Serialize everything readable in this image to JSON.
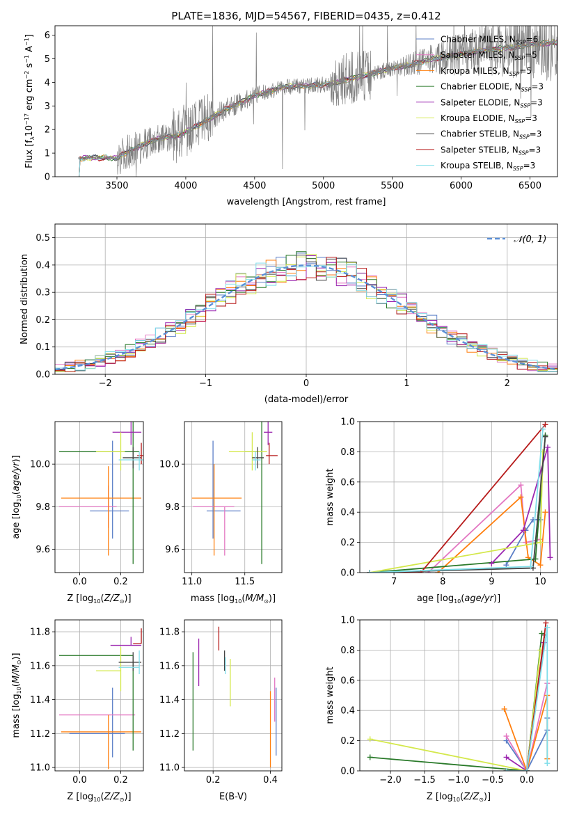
{
  "figure": {
    "title": "PLATE=1836, MJD=54567, FIBERID=0435, z=0.412"
  },
  "colors": {
    "chabrier_miles": "#5b7fc7",
    "salpeter_miles": "#e377c2",
    "kroupa_miles": "#ff7f0e",
    "chabrier_elodie": "#2a7a2a",
    "salpeter_elodie": "#9c27b0",
    "kroupa_elodie": "#d4e84c",
    "chabrier_stelib": "#444444",
    "salpeter_stelib": "#b71c1c",
    "kroupa_stelib": "#80deea",
    "gauss": "#5b8fd6",
    "data": "#808080"
  },
  "chart_data": [
    {
      "id": "spectrum",
      "type": "line",
      "title": "PLATE=1836, MJD=54567, FIBERID=0435, z=0.412",
      "xlabel": "wavelength [Angstrom, rest frame]",
      "ylabel": "Flux [fλ10⁻¹⁷ erg cm⁻² s⁻¹ A⁻¹]",
      "xlim": [
        3050,
        6700
      ],
      "ylim": [
        0,
        6.4
      ],
      "xticks": [
        3500,
        4000,
        4500,
        5000,
        5500,
        6000,
        6500
      ],
      "yticks": [
        0,
        1,
        2,
        3,
        4,
        5,
        6
      ],
      "grid": false,
      "legend": "upper-right",
      "data_x_range": [
        3220,
        6700
      ],
      "continuum": {
        "x": [
          3220,
          3280,
          3500,
          3560,
          3700,
          3800,
          3950,
          4000,
          4100,
          4200,
          4300,
          4400,
          4500,
          4600,
          4700,
          4800,
          4900,
          5000,
          5100,
          5200,
          5300,
          5400,
          5500,
          5600,
          5700,
          5800,
          5900,
          6000,
          6100,
          6200,
          6300,
          6400,
          6500,
          6600,
          6700
        ],
        "y": [
          0.75,
          0.8,
          0.8,
          1.0,
          1.4,
          1.6,
          1.75,
          1.9,
          2.2,
          2.55,
          2.9,
          3.15,
          3.45,
          3.6,
          3.8,
          3.85,
          3.85,
          3.9,
          4.0,
          4.15,
          4.3,
          4.45,
          4.6,
          4.7,
          4.85,
          5.0,
          5.1,
          5.2,
          5.3,
          5.4,
          5.45,
          5.5,
          5.6,
          5.65,
          5.7
        ]
      },
      "legend_entries": [
        {
          "key": "chabrier_miles",
          "label": "Chabrier MILES, N",
          "sub": "SSP",
          "suffix": "=6"
        },
        {
          "key": "salpeter_miles",
          "label": "Salpeter MILES, N",
          "sub": "SSP",
          "suffix": "=5"
        },
        {
          "key": "kroupa_miles",
          "label": "Kroupa MILES, N",
          "sub": "SSP",
          "suffix": "=5"
        },
        {
          "key": "chabrier_elodie",
          "label": "Chabrier ELODIE, N",
          "sub": "SSP",
          "suffix": "=3"
        },
        {
          "key": "salpeter_elodie",
          "label": "Salpeter ELODIE, N",
          "sub": "SSP",
          "suffix": "=3"
        },
        {
          "key": "kroupa_elodie",
          "label": "Kroupa ELODIE, N",
          "sub": "SSP",
          "suffix": "=3"
        },
        {
          "key": "chabrier_stelib",
          "label": "Chabrier STELIB, N",
          "sub": "SSP",
          "suffix": "=3"
        },
        {
          "key": "salpeter_stelib",
          "label": "Salpeter STELIB, N",
          "sub": "SSP",
          "suffix": "=3"
        },
        {
          "key": "kroupa_stelib",
          "label": "Kroupa STELIB, N",
          "sub": "SSP",
          "suffix": "=3"
        }
      ]
    },
    {
      "id": "residuals",
      "type": "histogram",
      "xlabel": "(data-model)/error",
      "ylabel": "Normed distribution",
      "xlim": [
        -2.5,
        2.5
      ],
      "ylim": [
        0,
        0.55
      ],
      "xticks": [
        -2,
        -1,
        0,
        1,
        2
      ],
      "yticks": [
        0.0,
        0.1,
        0.2,
        0.3,
        0.4,
        0.5
      ],
      "grid": true,
      "legend": "upper-right",
      "legend_label": "𝒩(0, 1)",
      "bin_edges": [
        -2.5,
        2.5
      ],
      "bin_width": 0.1
    },
    {
      "id": "age_vs_Z",
      "type": "errorbar",
      "xlabel": "Z [log₁₀(Z/Z⊙)]",
      "ylabel": "age  [log₁₀(age/yr)]",
      "xlim": [
        -0.12,
        0.31
      ],
      "ylim": [
        9.49,
        10.2
      ],
      "xticks": [
        0.0,
        0.2
      ],
      "yticks": [
        9.6,
        9.8,
        10.0
      ],
      "grid": true,
      "points": [
        {
          "key": "chabrier_miles",
          "x": 0.16,
          "xerr": [
            0.11,
            0.08
          ],
          "y": 9.78,
          "yerr": [
            0.13,
            0.33
          ]
        },
        {
          "key": "salpeter_miles",
          "x": 0.14,
          "xerr": [
            0.24,
            0.04
          ],
          "y": 9.8,
          "yerr": [
            0.1,
            0.1
          ]
        },
        {
          "key": "kroupa_miles",
          "x": 0.14,
          "xerr": [
            0.23,
            0.16
          ],
          "y": 9.84,
          "yerr": [
            0.27,
            0.15
          ]
        },
        {
          "key": "chabrier_elodie",
          "x": 0.26,
          "xerr": [
            0.36,
            0.03
          ],
          "y": 10.06,
          "yerr": [
            0.53,
            0.14
          ]
        },
        {
          "key": "salpeter_elodie",
          "x": 0.25,
          "xerr": [
            0.09,
            0.05
          ],
          "y": 10.15,
          "yerr": [
            0.06,
            0.08
          ]
        },
        {
          "key": "kroupa_elodie",
          "x": 0.2,
          "xerr": [
            0.12,
            0.02
          ],
          "y": 10.06,
          "yerr": [
            0.09,
            0.09
          ]
        },
        {
          "key": "chabrier_stelib",
          "x": 0.26,
          "xerr": [
            0.05,
            0.04
          ],
          "y": 10.03,
          "yerr": [
            0.05,
            0.05
          ]
        },
        {
          "key": "salpeter_stelib",
          "x": 0.3,
          "xerr": [
            0.02,
            0.02
          ],
          "y": 10.04,
          "yerr": [
            0.04,
            0.06
          ]
        },
        {
          "key": "kroupa_stelib",
          "x": 0.29,
          "xerr": [
            0.1,
            0.02
          ],
          "y": 10.02,
          "yerr": [
            0.05,
            0.04
          ]
        }
      ]
    },
    {
      "id": "age_vs_mass",
      "type": "errorbar",
      "xlabel": "mass [log₁₀(M/M⊙)]",
      "ylabel": "",
      "xlim": [
        10.93,
        11.85
      ],
      "ylim": [
        9.49,
        10.2
      ],
      "xticks": [
        11.0,
        11.5
      ],
      "yticks": [
        9.6,
        9.8,
        10.0
      ],
      "grid": true,
      "points": [
        {
          "key": "chabrier_miles",
          "x": 11.2,
          "xerr": [
            0.06,
            0.26
          ],
          "y": 9.78,
          "yerr": [
            0.13,
            0.33
          ]
        },
        {
          "key": "salpeter_miles",
          "x": 11.31,
          "xerr": [
            0.3,
            0.09
          ],
          "y": 9.8,
          "yerr": [
            0.23,
            0.0
          ]
        },
        {
          "key": "kroupa_miles",
          "x": 11.21,
          "xerr": [
            0.21,
            0.26
          ],
          "y": 9.84,
          "yerr": [
            0.27,
            0.16
          ]
        },
        {
          "key": "chabrier_elodie",
          "x": 11.66,
          "xerr": [
            0.16,
            0.0
          ],
          "y": 10.06,
          "yerr": [
            0.53,
            0.14
          ]
        },
        {
          "key": "salpeter_elodie",
          "x": 11.72,
          "xerr": [
            0.04,
            0.04
          ],
          "y": 10.15,
          "yerr": [
            0.06,
            0.08
          ]
        },
        {
          "key": "kroupa_elodie",
          "x": 11.57,
          "xerr": [
            0.22,
            0.14
          ],
          "y": 10.06,
          "yerr": [
            0.09,
            0.09
          ]
        },
        {
          "key": "chabrier_stelib",
          "x": 11.62,
          "xerr": [
            0.05,
            0.06
          ],
          "y": 10.03,
          "yerr": [
            0.05,
            0.05
          ]
        },
        {
          "key": "salpeter_stelib",
          "x": 11.73,
          "xerr": [
            0.03,
            0.08
          ],
          "y": 10.04,
          "yerr": [
            0.04,
            0.06
          ]
        },
        {
          "key": "kroupa_stelib",
          "x": 11.6,
          "xerr": [
            0.03,
            0.05
          ],
          "y": 10.02,
          "yerr": [
            0.05,
            0.04
          ]
        }
      ]
    },
    {
      "id": "massweight_vs_age",
      "type": "line",
      "xlabel": "age  [log₁₀(age/yr)]",
      "ylabel": "mass weight",
      "xlim": [
        6.3,
        10.35
      ],
      "ylim": [
        0,
        1.0
      ],
      "xticks": [
        7,
        8,
        9,
        10
      ],
      "yticks": [
        0.0,
        0.2,
        0.4,
        0.6,
        0.8,
        1.0
      ],
      "grid": true,
      "series": [
        {
          "key": "chabrier_miles",
          "x": [
            9.3,
            9.7,
            9.85,
            10.0
          ],
          "y": [
            0.05,
            0.28,
            0.35,
            0.35
          ]
        },
        {
          "key": "salpeter_miles",
          "x": [
            7.7,
            9.6,
            9.7,
            10.0
          ],
          "y": [
            0.0,
            0.58,
            0.2,
            0.22
          ]
        },
        {
          "key": "kroupa_miles",
          "x": [
            7.9,
            9.6,
            9.75,
            10.0,
            10.1
          ],
          "y": [
            0.0,
            0.5,
            0.1,
            0.05,
            0.4
          ]
        },
        {
          "key": "chabrier_elodie",
          "x": [
            6.5,
            9.9,
            10.1
          ],
          "y": [
            0.0,
            0.09,
            0.91
          ]
        },
        {
          "key": "salpeter_elodie",
          "x": [
            9.0,
            9.65,
            10.15,
            10.2
          ],
          "y": [
            0.06,
            0.28,
            0.83,
            0.1
          ]
        },
        {
          "key": "kroupa_elodie",
          "x": [
            6.5,
            10.0,
            10.05
          ],
          "y": [
            0.0,
            0.2,
            0.8
          ]
        },
        {
          "key": "chabrier_stelib",
          "x": [
            6.5,
            9.85,
            10.1
          ],
          "y": [
            0.0,
            0.03,
            0.9
          ]
        },
        {
          "key": "salpeter_stelib",
          "x": [
            6.5,
            7.55,
            10.1
          ],
          "y": [
            0.0,
            0.0,
            0.98
          ]
        },
        {
          "key": "kroupa_stelib",
          "x": [
            6.5,
            9.8,
            10.05
          ],
          "y": [
            0.0,
            0.04,
            0.95
          ]
        }
      ]
    },
    {
      "id": "mass_vs_Z",
      "type": "errorbar",
      "xlabel": "Z [log₁₀(Z/Z⊙)]",
      "ylabel": "mass [log₁₀(M/M⊙)]",
      "xlim": [
        -0.12,
        0.31
      ],
      "ylim": [
        10.98,
        11.87
      ],
      "xticks": [
        0.0,
        0.2
      ],
      "yticks": [
        11.0,
        11.2,
        11.4,
        11.6,
        11.8
      ],
      "grid": true,
      "points": [
        {
          "key": "chabrier_miles",
          "x": 0.16,
          "xerr": [
            0.21,
            0.06
          ],
          "y": 11.2,
          "yerr": [
            0.14,
            0.27
          ]
        },
        {
          "key": "salpeter_miles",
          "x": 0.14,
          "xerr": [
            0.24,
            0.13
          ],
          "y": 11.31,
          "yerr": [
            0.0,
            0.0
          ]
        },
        {
          "key": "kroupa_miles",
          "x": 0.14,
          "xerr": [
            0.23,
            0.16
          ],
          "y": 11.21,
          "yerr": [
            0.22,
            0.1
          ]
        },
        {
          "key": "chabrier_elodie",
          "x": 0.26,
          "xerr": [
            0.36,
            0.0
          ],
          "y": 11.66,
          "yerr": [
            0.56,
            0.0
          ]
        },
        {
          "key": "salpeter_elodie",
          "x": 0.25,
          "xerr": [
            0.1,
            0.05
          ],
          "y": 11.72,
          "yerr": [
            0.0,
            0.05
          ]
        },
        {
          "key": "kroupa_elodie",
          "x": 0.2,
          "xerr": [
            0.12,
            0.0
          ],
          "y": 11.57,
          "yerr": [
            0.12,
            0.14
          ]
        },
        {
          "key": "chabrier_stelib",
          "x": 0.26,
          "xerr": [
            0.07,
            0.04
          ],
          "y": 11.62,
          "yerr": [
            0.05,
            0.06
          ]
        },
        {
          "key": "salpeter_stelib",
          "x": 0.3,
          "xerr": [
            0.04,
            0.0
          ],
          "y": 11.73,
          "yerr": [
            0.0,
            0.09
          ]
        },
        {
          "key": "kroupa_stelib",
          "x": 0.29,
          "xerr": [
            0.1,
            0.0
          ],
          "y": 11.59,
          "yerr": [
            0.04,
            0.1
          ]
        }
      ]
    },
    {
      "id": "mass_vs_ebv",
      "type": "errorbar",
      "xlabel": "E(B-V)",
      "ylabel": "",
      "xlim": [
        0.1,
        0.44
      ],
      "ylim": [
        10.98,
        11.87
      ],
      "xticks": [
        0.2,
        0.4
      ],
      "yticks": [
        11.0,
        11.2,
        11.4,
        11.6,
        11.8
      ],
      "grid": true,
      "points": [
        {
          "key": "chabrier_miles",
          "x": 0.42,
          "xerr": [
            0,
            0
          ],
          "y": 11.25,
          "yerr": [
            0.18,
            0.22
          ]
        },
        {
          "key": "salpeter_miles",
          "x": 0.415,
          "xerr": [
            0,
            0
          ],
          "y": 11.4,
          "yerr": [
            0.13,
            0.13
          ]
        },
        {
          "key": "kroupa_miles",
          "x": 0.4,
          "xerr": [
            0,
            0
          ],
          "y": 11.25,
          "yerr": [
            0.25,
            0.2
          ]
        },
        {
          "key": "chabrier_elodie",
          "x": 0.13,
          "xerr": [
            0,
            0
          ],
          "y": 11.39,
          "yerr": [
            0.29,
            0.29
          ]
        },
        {
          "key": "salpeter_elodie",
          "x": 0.15,
          "xerr": [
            0,
            0
          ],
          "y": 11.62,
          "yerr": [
            0.14,
            0.14
          ]
        },
        {
          "key": "kroupa_elodie",
          "x": 0.26,
          "xerr": [
            0,
            0
          ],
          "y": 11.5,
          "yerr": [
            0.14,
            0.14
          ]
        },
        {
          "key": "chabrier_stelib",
          "x": 0.24,
          "xerr": [
            0,
            0
          ],
          "y": 11.63,
          "yerr": [
            0.06,
            0.06
          ]
        },
        {
          "key": "salpeter_stelib",
          "x": 0.22,
          "xerr": [
            0,
            0
          ],
          "y": 11.76,
          "yerr": [
            0.07,
            0.07
          ]
        },
        {
          "key": "kroupa_stelib",
          "x": 0.243,
          "xerr": [
            0,
            0
          ],
          "y": 11.6,
          "yerr": [
            0.05,
            0.05
          ]
        }
      ]
    },
    {
      "id": "massweight_vs_Z",
      "type": "line",
      "xlabel": "Z [log₁₀(Z/Z⊙)]",
      "ylabel": "mass weight",
      "xlim": [
        -2.45,
        0.45
      ],
      "ylim": [
        0,
        1.0
      ],
      "xticks": [
        -2.0,
        -1.5,
        -1.0,
        -0.5,
        0.0
      ],
      "yticks": [
        0.0,
        0.2,
        0.4,
        0.6,
        0.8,
        1.0
      ],
      "grid": true,
      "series": [
        {
          "key": "chabrier_miles",
          "x": [
            -0.3,
            0.0,
            0.3,
            0.3
          ],
          "y": [
            0.2,
            0.0,
            0.27,
            0.35
          ]
        },
        {
          "key": "salpeter_miles",
          "x": [
            -0.3,
            0.0,
            0.3
          ],
          "y": [
            0.23,
            0.0,
            0.58
          ]
        },
        {
          "key": "kroupa_miles",
          "x": [
            -0.33,
            0.0,
            0.3,
            0.3
          ],
          "y": [
            0.41,
            0.0,
            0.5,
            0.08
          ]
        },
        {
          "key": "chabrier_elodie",
          "x": [
            -2.3,
            0.0,
            0.22
          ],
          "y": [
            0.09,
            0.0,
            0.91
          ]
        },
        {
          "key": "salpeter_elodie",
          "x": [
            -0.3,
            0.0,
            0.25
          ],
          "y": [
            0.09,
            0.0,
            0.85
          ]
        },
        {
          "key": "kroupa_elodie",
          "x": [
            -2.3,
            0.0,
            0.2
          ],
          "y": [
            0.21,
            0.0,
            0.8
          ]
        },
        {
          "key": "chabrier_stelib",
          "x": [
            -0.3,
            0.0,
            0.26
          ],
          "y": [
            0.0,
            0.0,
            0.9
          ]
        },
        {
          "key": "salpeter_stelib",
          "x": [
            -0.3,
            0.0,
            0.28
          ],
          "y": [
            0.0,
            0.0,
            0.98
          ]
        },
        {
          "key": "kroupa_stelib",
          "x": [
            -0.3,
            0.0,
            0.3,
            0.3
          ],
          "y": [
            0.0,
            0.0,
            0.95,
            0.05
          ]
        }
      ]
    }
  ]
}
